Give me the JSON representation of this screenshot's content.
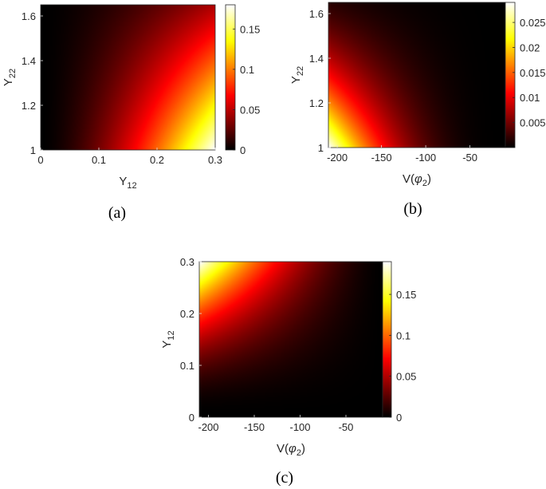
{
  "colormap": "hot",
  "chart_data": [
    {
      "type": "heatmap",
      "caption": "(a)",
      "xlabel": {
        "main": "Y",
        "sub": "12"
      },
      "ylabel": {
        "main": "Y",
        "sub": "22"
      },
      "xlim": [
        0,
        0.3
      ],
      "ylim": [
        1,
        1.65
      ],
      "xticks": [
        0,
        0.1,
        0.2,
        0.3
      ],
      "xtick_labels": [
        "0",
        "0.1",
        "0.2",
        "0.3"
      ],
      "yticks": [
        1,
        1.2,
        1.4,
        1.6
      ],
      "ytick_labels": [
        "1",
        "1.2",
        "1.4",
        "1.6"
      ],
      "clim": [
        0,
        0.18
      ],
      "cticks": [
        0,
        0.05,
        0.1,
        0.15
      ],
      "ctick_labels": [
        "0",
        "0.05",
        "0.1",
        "0.15"
      ],
      "intensity_trend": "increases with Y12 and decreases with Y22; peak at Y12=0.3, Y22=1"
    },
    {
      "type": "heatmap",
      "caption": "(b)",
      "xlabel": {
        "main": "V(",
        "phi": "φ",
        "sub": "2",
        "close": ")"
      },
      "ylabel": {
        "main": "Y",
        "sub": "22"
      },
      "xlim": [
        -210,
        -10
      ],
      "ylim": [
        1,
        1.65
      ],
      "xticks": [
        -200,
        -150,
        -100,
        -50
      ],
      "xtick_labels": [
        "-200",
        "-150",
        "-100",
        "-50"
      ],
      "yticks": [
        1,
        1.2,
        1.4,
        1.6
      ],
      "ytick_labels": [
        "1",
        "1.2",
        "1.4",
        "1.6"
      ],
      "clim": [
        0,
        0.029
      ],
      "cticks": [
        0.005,
        0.01,
        0.015,
        0.02,
        0.025
      ],
      "ctick_labels": [
        "0.005",
        "0.01",
        "0.015",
        "0.02",
        "0.025"
      ],
      "intensity_trend": "largest at V(phi2)=-210, Y22=1; decays toward less negative V and larger Y22"
    },
    {
      "type": "heatmap",
      "caption": "(c)",
      "xlabel": {
        "main": "V(",
        "phi": "φ",
        "sub": "2",
        "close": ")"
      },
      "ylabel": {
        "main": "Y",
        "sub": "12"
      },
      "xlim": [
        -210,
        -10
      ],
      "ylim": [
        0,
        0.3
      ],
      "xticks": [
        -200,
        -150,
        -100,
        -50
      ],
      "xtick_labels": [
        "-200",
        "-150",
        "-100",
        "-50"
      ],
      "yticks": [
        0,
        0.1,
        0.2,
        0.3
      ],
      "ytick_labels": [
        "0",
        "0.1",
        "0.2",
        "0.3"
      ],
      "clim": [
        0,
        0.19
      ],
      "cticks": [
        0,
        0.05,
        0.1,
        0.15
      ],
      "ctick_labels": [
        "0",
        "0.05",
        "0.1",
        "0.15"
      ],
      "intensity_trend": "largest at V(phi2)=-210, Y12=0.3; decays toward less negative V and smaller Y12"
    }
  ]
}
